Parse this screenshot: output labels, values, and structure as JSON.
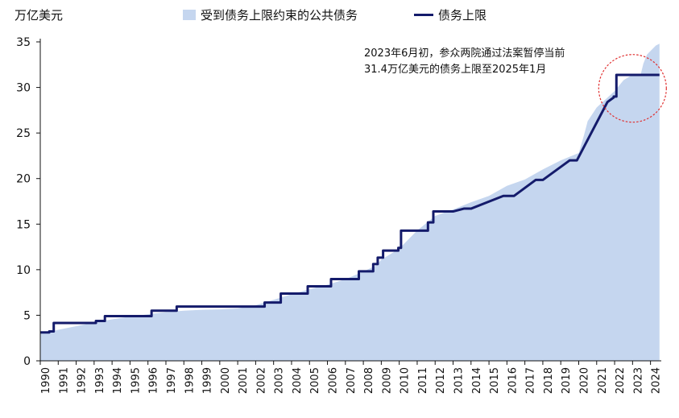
{
  "chart_data": {
    "type": "area+line",
    "unit_label": "万亿美元",
    "ylim": [
      0,
      35
    ],
    "y_ticks": [
      0,
      5,
      10,
      15,
      20,
      25,
      30,
      35
    ],
    "xlim": [
      1990,
      2024.6
    ],
    "x_ticks": [
      "1990",
      "1991",
      "1992",
      "1993",
      "1994",
      "1995",
      "1996",
      "1997",
      "1998",
      "1999",
      "2000",
      "2001",
      "2002",
      "2003",
      "2004",
      "2005",
      "2006",
      "2007",
      "2008",
      "2009",
      "2010",
      "2011",
      "2012",
      "2013",
      "2014",
      "2015",
      "2016",
      "2017",
      "2018",
      "2019",
      "2020",
      "2021",
      "2022",
      "2023",
      "2024"
    ],
    "series": [
      {
        "name": "受到债务上限约束的公共债务",
        "kind": "area",
        "color": "#c5d6ef",
        "points": [
          [
            1990,
            3.0
          ],
          [
            1990.5,
            3.15
          ],
          [
            1991,
            3.4
          ],
          [
            1992,
            3.8
          ],
          [
            1993,
            4.2
          ],
          [
            1994,
            4.55
          ],
          [
            1995,
            4.85
          ],
          [
            1996,
            5.1
          ],
          [
            1997,
            5.35
          ],
          [
            1998,
            5.5
          ],
          [
            1999,
            5.6
          ],
          [
            2000,
            5.65
          ],
          [
            2001,
            5.75
          ],
          [
            2002,
            6.1
          ],
          [
            2003,
            6.7
          ],
          [
            2004,
            7.3
          ],
          [
            2005,
            7.85
          ],
          [
            2006,
            8.35
          ],
          [
            2007,
            8.95
          ],
          [
            2008,
            9.8
          ],
          [
            2008.75,
            10.5
          ],
          [
            2009,
            11.1
          ],
          [
            2010,
            12.3
          ],
          [
            2011,
            14.3
          ],
          [
            2012,
            15.9
          ],
          [
            2013,
            16.6
          ],
          [
            2014,
            17.4
          ],
          [
            2015,
            18.1
          ],
          [
            2016,
            19.2
          ],
          [
            2017,
            19.9
          ],
          [
            2018,
            21.0
          ],
          [
            2019,
            22.0
          ],
          [
            2020,
            22.8
          ],
          [
            2020.3,
            24.8
          ],
          [
            2020.5,
            26.3
          ],
          [
            2021,
            27.8
          ],
          [
            2022,
            29.6
          ],
          [
            2022.5,
            30.8
          ],
          [
            2023,
            31.4
          ],
          [
            2023.45,
            31.4
          ],
          [
            2023.6,
            32.6
          ],
          [
            2023.8,
            33.6
          ],
          [
            2024,
            34.0
          ],
          [
            2024.3,
            34.6
          ],
          [
            2024.5,
            34.8
          ]
        ]
      },
      {
        "name": "债务上限",
        "kind": "step-line",
        "color": "#141b6b",
        "points": [
          [
            1990,
            3.12
          ],
          [
            1990.5,
            3.12
          ],
          [
            1990.5,
            3.23
          ],
          [
            1990.75,
            3.23
          ],
          [
            1990.75,
            4.15
          ],
          [
            1993.1,
            4.15
          ],
          [
            1993.1,
            4.37
          ],
          [
            1993.6,
            4.37
          ],
          [
            1993.6,
            4.9
          ],
          [
            1996.2,
            4.9
          ],
          [
            1996.2,
            5.5
          ],
          [
            1997.6,
            5.5
          ],
          [
            1997.6,
            5.95
          ],
          [
            2002.5,
            5.95
          ],
          [
            2002.5,
            6.4
          ],
          [
            2003.4,
            6.4
          ],
          [
            2003.4,
            7.38
          ],
          [
            2004.9,
            7.38
          ],
          [
            2004.9,
            8.18
          ],
          [
            2006.2,
            8.18
          ],
          [
            2006.2,
            8.97
          ],
          [
            2007.75,
            8.97
          ],
          [
            2007.75,
            9.82
          ],
          [
            2008.55,
            9.82
          ],
          [
            2008.55,
            10.62
          ],
          [
            2008.8,
            10.62
          ],
          [
            2008.8,
            11.32
          ],
          [
            2009.1,
            11.32
          ],
          [
            2009.1,
            12.1
          ],
          [
            2009.95,
            12.1
          ],
          [
            2009.95,
            12.4
          ],
          [
            2010.1,
            12.4
          ],
          [
            2010.1,
            14.29
          ],
          [
            2011.6,
            14.29
          ],
          [
            2011.6,
            15.19
          ],
          [
            2011.9,
            15.19
          ],
          [
            2011.9,
            16.39
          ],
          [
            2013.0,
            16.39
          ],
          [
            2013.6,
            16.7
          ],
          [
            2014.0,
            16.7
          ],
          [
            2015.8,
            18.1
          ],
          [
            2016.4,
            18.1
          ],
          [
            2017.6,
            19.85
          ],
          [
            2018.0,
            19.85
          ],
          [
            2019.5,
            22.0
          ],
          [
            2019.9,
            22.0
          ],
          [
            2021.6,
            28.4
          ],
          [
            2021.95,
            28.9
          ],
          [
            2021.95,
            29.0
          ],
          [
            2022.1,
            29.0
          ],
          [
            2022.1,
            31.38
          ],
          [
            2024.5,
            31.38
          ]
        ]
      }
    ],
    "annotation": [
      "2023年6月初，参众两院通过法案暂停当前",
      "31.4万亿美元的债务上限至2025年1月"
    ],
    "highlight_circle_center": [
      2023.0,
      29.9
    ],
    "highlight_circle_color": "#e03030",
    "axis_color": "#111111"
  }
}
